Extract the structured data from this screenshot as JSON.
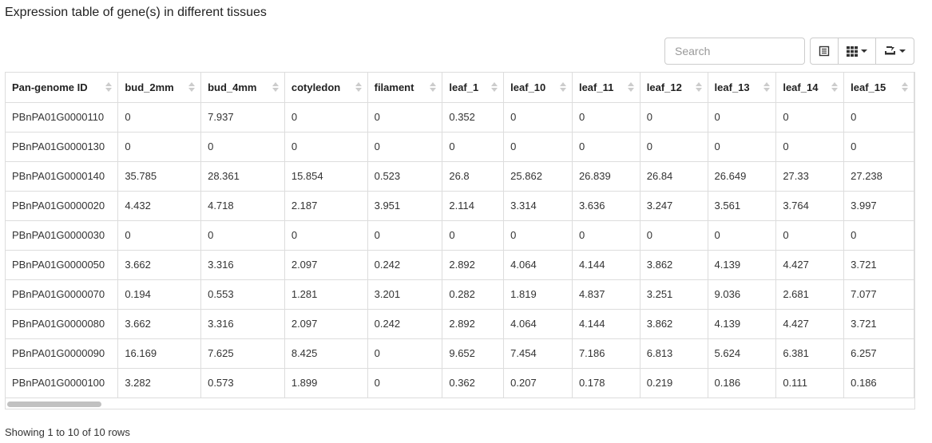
{
  "title": "Expression table of gene(s) in different tissues",
  "search": {
    "placeholder": "Search"
  },
  "toolbar": {
    "buttons": [
      {
        "icon": "list-view-icon"
      },
      {
        "icon": "columns-grid-icon"
      },
      {
        "icon": "export-icon"
      }
    ]
  },
  "table": {
    "columns": [
      "Pan-genome ID",
      "bud_2mm",
      "bud_4mm",
      "cotyledon",
      "filament",
      "leaf_1",
      "leaf_10",
      "leaf_11",
      "leaf_12",
      "leaf_13",
      "leaf_14",
      "leaf_15"
    ],
    "rows": [
      [
        "PBnPA01G0000110",
        "0",
        "7.937",
        "0",
        "0",
        "0.352",
        "0",
        "0",
        "0",
        "0",
        "0",
        "0"
      ],
      [
        "PBnPA01G0000130",
        "0",
        "0",
        "0",
        "0",
        "0",
        "0",
        "0",
        "0",
        "0",
        "0",
        "0"
      ],
      [
        "PBnPA01G0000140",
        "35.785",
        "28.361",
        "15.854",
        "0.523",
        "26.8",
        "25.862",
        "26.839",
        "26.84",
        "26.649",
        "27.33",
        "27.238"
      ],
      [
        "PBnPA01G0000020",
        "4.432",
        "4.718",
        "2.187",
        "3.951",
        "2.114",
        "3.314",
        "3.636",
        "3.247",
        "3.561",
        "3.764",
        "3.997"
      ],
      [
        "PBnPA01G0000030",
        "0",
        "0",
        "0",
        "0",
        "0",
        "0",
        "0",
        "0",
        "0",
        "0",
        "0"
      ],
      [
        "PBnPA01G0000050",
        "3.662",
        "3.316",
        "2.097",
        "0.242",
        "2.892",
        "4.064",
        "4.144",
        "3.862",
        "4.139",
        "4.427",
        "3.721"
      ],
      [
        "PBnPA01G0000070",
        "0.194",
        "0.553",
        "1.281",
        "3.201",
        "0.282",
        "1.819",
        "4.837",
        "3.251",
        "9.036",
        "2.681",
        "7.077"
      ],
      [
        "PBnPA01G0000080",
        "3.662",
        "3.316",
        "2.097",
        "0.242",
        "2.892",
        "4.064",
        "4.144",
        "3.862",
        "4.139",
        "4.427",
        "3.721"
      ],
      [
        "PBnPA01G0000090",
        "16.169",
        "7.625",
        "8.425",
        "0",
        "9.652",
        "7.454",
        "7.186",
        "6.813",
        "5.624",
        "6.381",
        "6.257"
      ],
      [
        "PBnPA01G0000100",
        "3.282",
        "0.573",
        "1.899",
        "0",
        "0.362",
        "0.207",
        "0.178",
        "0.219",
        "0.186",
        "0.111",
        "0.186"
      ]
    ]
  },
  "footer": {
    "pagination_text": "Showing 1 to 10 of 10 rows"
  }
}
